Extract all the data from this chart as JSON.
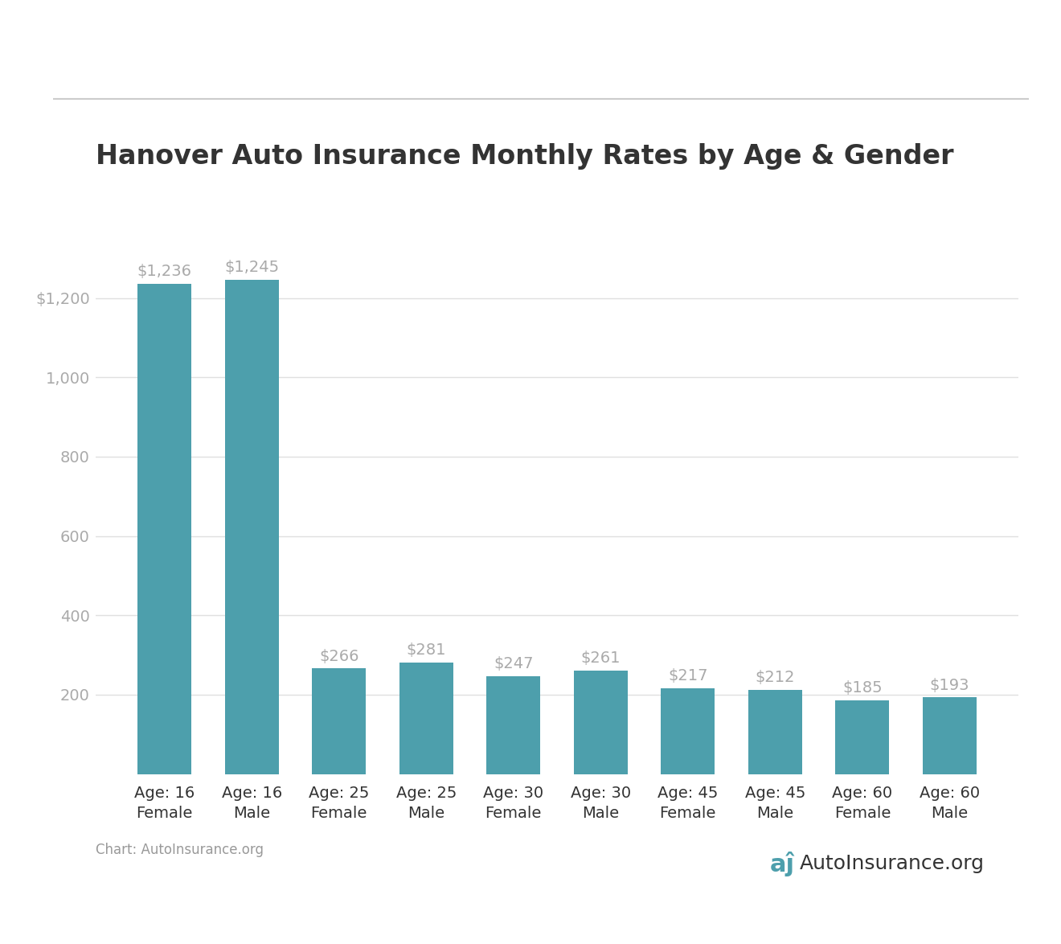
{
  "title": "Hanover Auto Insurance Monthly Rates by Age & Gender",
  "categories": [
    "Age: 16\nFemale",
    "Age: 16\nMale",
    "Age: 25\nFemale",
    "Age: 25\nMale",
    "Age: 30\nFemale",
    "Age: 30\nMale",
    "Age: 45\nFemale",
    "Age: 45\nMale",
    "Age: 60\nFemale",
    "Age: 60\nMale"
  ],
  "values": [
    1236,
    1245,
    266,
    281,
    247,
    261,
    217,
    212,
    185,
    193
  ],
  "bar_color": "#4d9fac",
  "bar_labels": [
    "$1,236",
    "$1,245",
    "$266",
    "$281",
    "$247",
    "$261",
    "$217",
    "$212",
    "$185",
    "$193"
  ],
  "yticks": [
    200,
    400,
    600,
    800,
    1000,
    1200
  ],
  "ytick_labels": [
    "200",
    "400",
    "600",
    "800",
    "1,000",
    "$1,200"
  ],
  "ylim": [
    0,
    1380
  ],
  "title_fontsize": 24,
  "bar_label_fontsize": 14,
  "xtick_fontsize": 14,
  "ytick_fontsize": 14,
  "source_text": "Chart: AutoInsurance.org",
  "logo_text": "AutoInsurance.org",
  "background_color": "#ffffff",
  "grid_color": "#e0e0e0",
  "top_line_color": "#cccccc",
  "text_color": "#333333",
  "tick_color": "#aaaaaa",
  "source_text_color": "#999999"
}
